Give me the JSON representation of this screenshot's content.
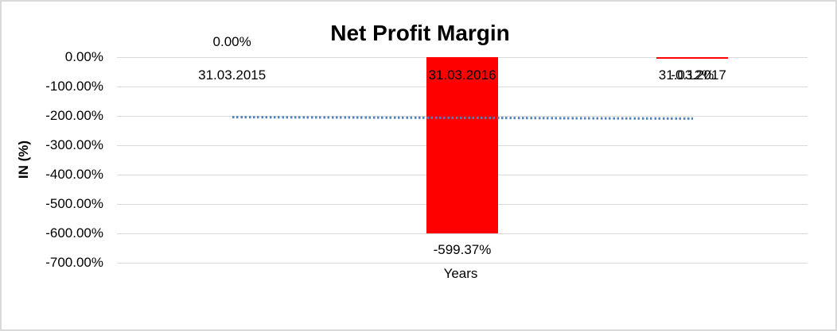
{
  "chart_data": {
    "type": "bar",
    "title": "Net Profit Margin",
    "xlabel": "Years",
    "ylabel": "IN (%)",
    "categories": [
      "31.03.2015",
      "31.03.2016",
      "31.03.2017"
    ],
    "series": [
      {
        "name": "Net Profit Margin",
        "values": [
          0,
          -599.37,
          -0.12
        ],
        "labels": [
          "0.00%",
          "-599.37%",
          "-0.12%"
        ],
        "color": "#ff0000"
      }
    ],
    "y_ticks": [
      "0.00%",
      "-100.00%",
      "-200.00%",
      "-300.00%",
      "-400.00%",
      "-500.00%",
      "-600.00%",
      "-700.00%"
    ],
    "y_tick_values": [
      0,
      -100,
      -200,
      -300,
      -400,
      -500,
      -600,
      -700
    ],
    "ylim": [
      -700,
      0
    ],
    "grid": true,
    "legend": "none",
    "trendline": {
      "type": "linear",
      "style": "dotted",
      "color": "#4f81bd",
      "start_value": -199.77,
      "end_value": -199.89
    }
  },
  "colors": {
    "bar": "#ff0000",
    "trendline": "#4f81bd",
    "gridline": "#d9d9d9",
    "border": "#d9d9d9",
    "text": "#000000"
  }
}
